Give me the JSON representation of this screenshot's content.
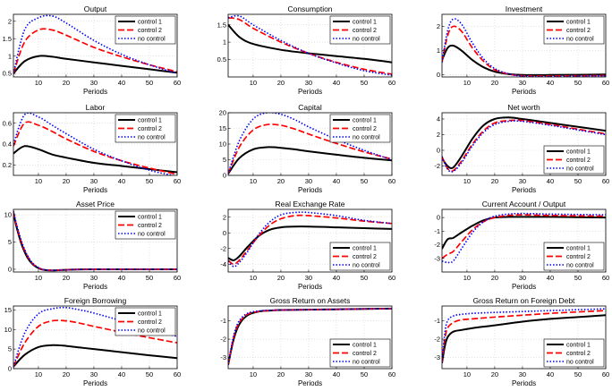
{
  "legend_labels": [
    "control 1",
    "control 2",
    "no control"
  ],
  "series_styles": [
    {
      "name": "control 1",
      "color": "#000000",
      "dash": "solid"
    },
    {
      "name": "control 2",
      "color": "#ff0000",
      "dash": "dashed"
    },
    {
      "name": "no control",
      "color": "#0000ff",
      "dash": "dotted"
    }
  ],
  "chart_data": [
    {
      "type": "line",
      "title": "Output",
      "xlabel": "Periods",
      "ylabel": "",
      "xlim": [
        1,
        60
      ],
      "ylim": [
        0.4,
        2.2
      ],
      "xticks": [
        10,
        20,
        30,
        40,
        50,
        60
      ],
      "yticks": [
        0.5,
        1,
        1.5,
        2
      ],
      "ytick_labels": [
        "0.5",
        "1",
        "1.5",
        "2"
      ],
      "grid": true,
      "legend": "top-right",
      "x": [
        1,
        5,
        10,
        15,
        20,
        30,
        40,
        50,
        60
      ],
      "series": [
        {
          "name": "control 1",
          "values": [
            0.5,
            0.85,
            1.0,
            0.98,
            0.92,
            0.82,
            0.72,
            0.62,
            0.52
          ]
        },
        {
          "name": "control 2",
          "values": [
            0.5,
            1.4,
            1.75,
            1.75,
            1.6,
            1.25,
            0.98,
            0.75,
            0.55
          ]
        },
        {
          "name": "no control",
          "values": [
            0.5,
            1.75,
            2.1,
            2.15,
            1.95,
            1.45,
            1.05,
            0.75,
            0.5
          ]
        }
      ]
    },
    {
      "type": "line",
      "title": "Consumption",
      "xlabel": "Periods",
      "ylabel": "",
      "xlim": [
        1,
        60
      ],
      "ylim": [
        0.0,
        1.8
      ],
      "xticks": [
        10,
        20,
        30,
        40,
        50,
        60
      ],
      "yticks": [
        0.5,
        1,
        1.5
      ],
      "ytick_labels": [
        "0.5",
        "1",
        "1.5"
      ],
      "grid": true,
      "legend": "top-right",
      "x": [
        1,
        5,
        10,
        20,
        30,
        40,
        50,
        60
      ],
      "series": [
        {
          "name": "control 1",
          "values": [
            1.5,
            1.15,
            0.95,
            0.78,
            0.68,
            0.6,
            0.52,
            0.42
          ]
        },
        {
          "name": "control 2",
          "values": [
            1.7,
            1.65,
            1.4,
            1.0,
            0.68,
            0.42,
            0.22,
            0.08
          ]
        },
        {
          "name": "no control",
          "values": [
            1.7,
            1.75,
            1.5,
            1.05,
            0.68,
            0.4,
            0.18,
            0.05
          ]
        }
      ]
    },
    {
      "type": "line",
      "title": "Investment",
      "xlabel": "Periods",
      "ylabel": "",
      "xlim": [
        1,
        60
      ],
      "ylim": [
        -0.1,
        2.5
      ],
      "xticks": [
        10,
        20,
        30,
        40,
        50,
        60
      ],
      "yticks": [
        0,
        1,
        2
      ],
      "ytick_labels": [
        "0",
        "1",
        "2"
      ],
      "grid": true,
      "legend": "top-right",
      "x": [
        1,
        3,
        5,
        8,
        12,
        16,
        20,
        25,
        30,
        40,
        60
      ],
      "series": [
        {
          "name": "control 1",
          "values": [
            0.6,
            1.1,
            1.2,
            1.0,
            0.6,
            0.3,
            0.12,
            0.02,
            -0.02,
            -0.02,
            0.0
          ]
        },
        {
          "name": "control 2",
          "values": [
            0.5,
            1.6,
            2.0,
            1.8,
            1.1,
            0.55,
            0.2,
            0.02,
            -0.05,
            -0.06,
            -0.04
          ]
        },
        {
          "name": "no control",
          "values": [
            0.5,
            1.8,
            2.3,
            2.1,
            1.3,
            0.65,
            0.25,
            0.03,
            -0.06,
            -0.08,
            -0.05
          ]
        }
      ]
    },
    {
      "type": "line",
      "title": "Labor",
      "xlabel": "Periods",
      "ylabel": "",
      "xlim": [
        1,
        60
      ],
      "ylim": [
        0.1,
        0.7
      ],
      "xticks": [
        10,
        20,
        30,
        40,
        50,
        60
      ],
      "yticks": [
        0.2,
        0.4,
        0.6
      ],
      "ytick_labels": [
        "0.2",
        "0.4",
        "0.6"
      ],
      "grid": true,
      "legend": "top-right",
      "x": [
        1,
        5,
        10,
        15,
        20,
        30,
        40,
        50,
        60
      ],
      "series": [
        {
          "name": "control 1",
          "values": [
            0.31,
            0.38,
            0.35,
            0.3,
            0.27,
            0.22,
            0.19,
            0.16,
            0.13
          ]
        },
        {
          "name": "control 2",
          "values": [
            0.38,
            0.6,
            0.58,
            0.52,
            0.45,
            0.33,
            0.24,
            0.17,
            0.11
          ]
        },
        {
          "name": "no control",
          "values": [
            0.4,
            0.68,
            0.66,
            0.58,
            0.5,
            0.35,
            0.24,
            0.15,
            0.09
          ]
        }
      ]
    },
    {
      "type": "line",
      "title": "Capital",
      "xlabel": "Periods",
      "ylabel": "",
      "xlim": [
        1,
        60
      ],
      "ylim": [
        0,
        20
      ],
      "xticks": [
        10,
        20,
        30,
        40,
        50,
        60
      ],
      "yticks": [
        0,
        5,
        10,
        15,
        20
      ],
      "ytick_labels": [
        "0",
        "5",
        "10",
        "15",
        "20"
      ],
      "grid": true,
      "legend": "top-right",
      "x": [
        1,
        5,
        10,
        15,
        20,
        25,
        30,
        40,
        50,
        60
      ],
      "series": [
        {
          "name": "control 1",
          "values": [
            0.5,
            5.5,
            8.3,
            9.0,
            8.8,
            8.3,
            7.7,
            6.6,
            5.6,
            4.8
          ]
        },
        {
          "name": "control 2",
          "values": [
            0.5,
            9.0,
            14.5,
            16.2,
            16.0,
            14.8,
            13.2,
            10.2,
            7.5,
            5.2
          ]
        },
        {
          "name": "no control",
          "values": [
            0.5,
            11.0,
            18.0,
            20.0,
            19.5,
            17.8,
            15.5,
            11.5,
            8.0,
            5.0
          ]
        }
      ]
    },
    {
      "type": "line",
      "title": "Net worth",
      "xlabel": "Periods",
      "ylabel": "",
      "xlim": [
        1,
        60
      ],
      "ylim": [
        -3.2,
        4.8
      ],
      "xticks": [
        10,
        20,
        30,
        40,
        50,
        60
      ],
      "yticks": [
        -2,
        0,
        2,
        4
      ],
      "ytick_labels": [
        "-2",
        "0",
        "2",
        "4"
      ],
      "grid": true,
      "legend": "bottom-right",
      "x": [
        1,
        3,
        5,
        8,
        12,
        16,
        20,
        25,
        30,
        40,
        50,
        60
      ],
      "series": [
        {
          "name": "control 1",
          "values": [
            -1.0,
            -2.0,
            -2.2,
            -0.8,
            1.5,
            3.2,
            4.0,
            4.2,
            4.0,
            3.5,
            3.0,
            2.5
          ]
        },
        {
          "name": "control 2",
          "values": [
            -0.8,
            -2.3,
            -2.6,
            -1.4,
            0.8,
            2.5,
            3.5,
            3.8,
            3.8,
            3.3,
            2.7,
            2.1
          ]
        },
        {
          "name": "no control",
          "values": [
            -0.8,
            -2.4,
            -2.7,
            -1.6,
            0.6,
            2.3,
            3.3,
            3.7,
            3.7,
            3.2,
            2.6,
            2.0
          ]
        }
      ]
    },
    {
      "type": "line",
      "title": "Asset Price",
      "xlabel": "Periods",
      "ylabel": "",
      "xlim": [
        1,
        60
      ],
      "ylim": [
        -0.5,
        11
      ],
      "xticks": [
        10,
        20,
        30,
        40,
        50,
        60
      ],
      "yticks": [
        0,
        5,
        10
      ],
      "ytick_labels": [
        "0",
        "5",
        "10"
      ],
      "grid": true,
      "legend": "top-right",
      "x": [
        1,
        2,
        4,
        6,
        8,
        10,
        12,
        15,
        20,
        30,
        60
      ],
      "series": [
        {
          "name": "control 1",
          "values": [
            10.5,
            8.0,
            4.5,
            2.2,
            0.9,
            0.2,
            -0.1,
            -0.2,
            -0.1,
            0.0,
            0.0
          ]
        },
        {
          "name": "control 2",
          "values": [
            10.5,
            8.3,
            4.8,
            2.5,
            1.0,
            0.3,
            -0.1,
            -0.2,
            -0.1,
            0.0,
            0.0
          ]
        },
        {
          "name": "no control",
          "values": [
            10.7,
            8.5,
            5.0,
            2.6,
            1.1,
            0.3,
            -0.05,
            -0.2,
            -0.1,
            0.0,
            0.0
          ]
        }
      ]
    },
    {
      "type": "line",
      "title": "Real Exchange Rate",
      "xlabel": "Periods",
      "ylabel": "",
      "xlim": [
        1,
        60
      ],
      "ylim": [
        -5,
        3
      ],
      "xticks": [
        10,
        20,
        30,
        40,
        50,
        60
      ],
      "yticks": [
        -4,
        -2,
        0,
        2
      ],
      "ytick_labels": [
        "-4",
        "-2",
        "0",
        "2"
      ],
      "grid": true,
      "legend": "bottom-right",
      "x": [
        1,
        3,
        5,
        8,
        12,
        16,
        20,
        25,
        30,
        40,
        50,
        60
      ],
      "series": [
        {
          "name": "control 1",
          "values": [
            -3.2,
            -3.5,
            -3.0,
            -1.8,
            -0.4,
            0.4,
            0.7,
            0.8,
            0.8,
            0.7,
            0.6,
            0.5
          ]
        },
        {
          "name": "control 2",
          "values": [
            -3.5,
            -4.0,
            -3.5,
            -2.2,
            -0.4,
            1.0,
            1.8,
            2.2,
            2.2,
            1.9,
            1.5,
            1.2
          ]
        },
        {
          "name": "no control",
          "values": [
            -3.6,
            -4.3,
            -3.8,
            -2.4,
            -0.2,
            1.4,
            2.3,
            2.6,
            2.6,
            2.2,
            1.6,
            1.2
          ]
        }
      ]
    },
    {
      "type": "line",
      "title": "Current Account / Output",
      "xlabel": "Periods",
      "ylabel": "",
      "xlim": [
        1,
        60
      ],
      "ylim": [
        -4,
        0.6
      ],
      "xticks": [
        10,
        20,
        30,
        40,
        50,
        60
      ],
      "yticks": [
        -3,
        -2,
        -1,
        0
      ],
      "ytick_labels": [
        "-3",
        "-2",
        "-1",
        "0"
      ],
      "grid": true,
      "legend": "bottom-right",
      "x": [
        1,
        3,
        5,
        8,
        12,
        16,
        20,
        25,
        30,
        40,
        60
      ],
      "series": [
        {
          "name": "control 1",
          "values": [
            -2.3,
            -1.6,
            -1.5,
            -1.1,
            -0.6,
            -0.2,
            0.0,
            0.05,
            0.05,
            0.05,
            0.0
          ]
        },
        {
          "name": "control 2",
          "values": [
            -3.0,
            -2.7,
            -2.5,
            -1.8,
            -0.9,
            -0.3,
            0.0,
            0.15,
            0.2,
            0.15,
            0.1
          ]
        },
        {
          "name": "no control",
          "values": [
            -3.2,
            -3.3,
            -3.2,
            -2.3,
            -1.1,
            -0.3,
            0.1,
            0.25,
            0.3,
            0.25,
            0.2
          ]
        }
      ]
    },
    {
      "type": "line",
      "title": "Foreign Borrowing",
      "xlabel": "Periods",
      "ylabel": "",
      "xlim": [
        1,
        60
      ],
      "ylim": [
        0,
        16
      ],
      "xticks": [
        10,
        20,
        30,
        40,
        50,
        60
      ],
      "yticks": [
        0,
        5,
        10,
        15
      ],
      "ytick_labels": [
        "0",
        "5",
        "10",
        "15"
      ],
      "grid": true,
      "legend": "top-right",
      "x": [
        1,
        5,
        10,
        15,
        20,
        25,
        30,
        40,
        50,
        60
      ],
      "series": [
        {
          "name": "control 1",
          "values": [
            0.5,
            3.5,
            5.5,
            6.0,
            5.8,
            5.4,
            5.0,
            4.2,
            3.4,
            2.7
          ]
        },
        {
          "name": "control 2",
          "values": [
            0.5,
            6.5,
            10.8,
            12.2,
            12.2,
            11.6,
            10.8,
            9.3,
            7.9,
            6.6
          ]
        },
        {
          "name": "no control",
          "values": [
            0.5,
            9.0,
            14.0,
            15.3,
            15.6,
            15.0,
            14.2,
            12.2,
            10.1,
            8.2
          ]
        }
      ]
    },
    {
      "type": "line",
      "title": "Gross Return on Assets",
      "xlabel": "Periods",
      "ylabel": "",
      "xlim": [
        1,
        60
      ],
      "ylim": [
        -3.6,
        -0.2
      ],
      "xticks": [
        10,
        20,
        30,
        40,
        50,
        60
      ],
      "yticks": [
        -3,
        -2,
        -1
      ],
      "ytick_labels": [
        "-3",
        "-2",
        "-1"
      ],
      "grid": true,
      "legend": "bottom-right",
      "x": [
        1,
        3,
        5,
        8,
        12,
        16,
        20,
        30,
        40,
        50,
        60
      ],
      "series": [
        {
          "name": "control 1",
          "values": [
            -3.4,
            -2.0,
            -1.2,
            -0.7,
            -0.5,
            -0.45,
            -0.42,
            -0.4,
            -0.38,
            -0.36,
            -0.34
          ]
        },
        {
          "name": "control 2",
          "values": [
            -3.4,
            -1.9,
            -1.1,
            -0.65,
            -0.5,
            -0.45,
            -0.42,
            -0.4,
            -0.38,
            -0.36,
            -0.34
          ]
        },
        {
          "name": "no control",
          "values": [
            -3.4,
            -1.8,
            -1.0,
            -0.6,
            -0.47,
            -0.44,
            -0.42,
            -0.4,
            -0.38,
            -0.36,
            -0.34
          ]
        }
      ]
    },
    {
      "type": "line",
      "title": "Gross Return on Foreign Debt",
      "xlabel": "Periods",
      "ylabel": "",
      "xlim": [
        1,
        60
      ],
      "ylim": [
        -3.6,
        -0.2
      ],
      "xticks": [
        10,
        20,
        30,
        40,
        50,
        60
      ],
      "yticks": [
        -3,
        -2,
        -1
      ],
      "ytick_labels": [
        "-3",
        "-2",
        "-1"
      ],
      "grid": true,
      "legend": "bottom-right",
      "x": [
        1,
        2,
        3,
        5,
        8,
        12,
        20,
        30,
        40,
        50,
        60
      ],
      "series": [
        {
          "name": "control 1",
          "values": [
            -3.3,
            -2.4,
            -1.9,
            -1.6,
            -1.5,
            -1.4,
            -1.25,
            -1.05,
            -0.9,
            -0.8,
            -0.7
          ]
        },
        {
          "name": "control 2",
          "values": [
            -3.3,
            -2.0,
            -1.4,
            -1.1,
            -0.95,
            -0.9,
            -0.8,
            -0.7,
            -0.6,
            -0.52,
            -0.45
          ]
        },
        {
          "name": "no control",
          "values": [
            -3.3,
            -1.7,
            -1.0,
            -0.75,
            -0.65,
            -0.6,
            -0.55,
            -0.5,
            -0.45,
            -0.4,
            -0.35
          ]
        }
      ]
    }
  ]
}
